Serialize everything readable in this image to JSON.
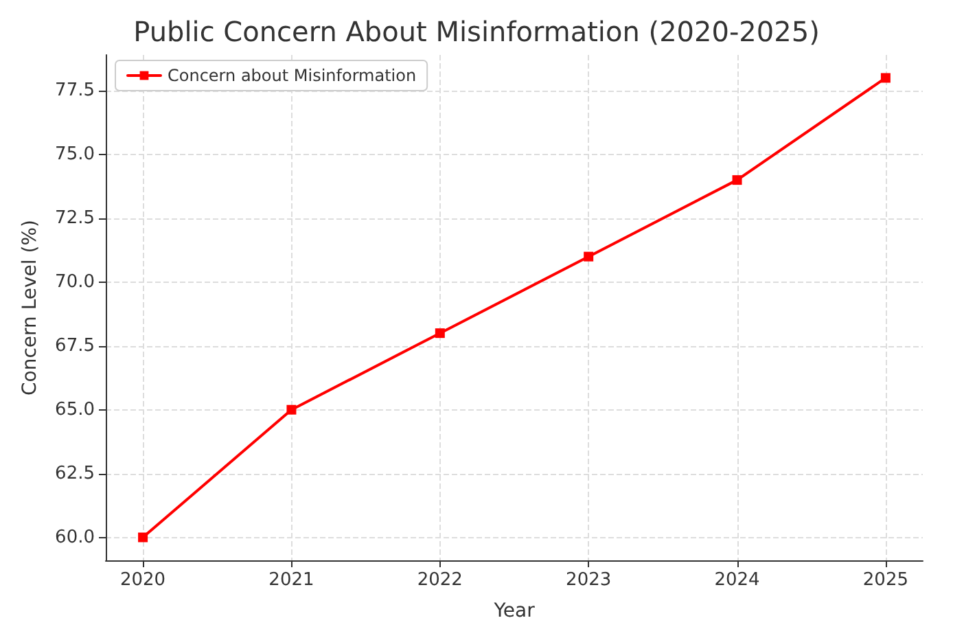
{
  "chart_data": {
    "type": "line",
    "title": "Public Concern About Misinformation (2020-2025)",
    "xlabel": "Year",
    "ylabel": "Concern Level (%)",
    "x": [
      2020,
      2021,
      2022,
      2023,
      2024,
      2025
    ],
    "series": [
      {
        "name": "Concern about Misinformation",
        "color": "#ff0000",
        "values": [
          60,
          65,
          68,
          71,
          74,
          78
        ]
      }
    ],
    "xlim": [
      2019.75,
      2025.25
    ],
    "xticks": [
      2020,
      2021,
      2022,
      2023,
      2024,
      2025
    ],
    "ylim": [
      59.1,
      78.9
    ],
    "yticks": [
      {
        "value": 60,
        "label": "60.0"
      },
      {
        "value": 62.5,
        "label": "62.5"
      },
      {
        "value": 65,
        "label": "65.0"
      },
      {
        "value": 67.5,
        "label": "67.5"
      },
      {
        "value": 70,
        "label": "70.0"
      },
      {
        "value": 72.5,
        "label": "72.5"
      },
      {
        "value": 75,
        "label": "75.0"
      },
      {
        "value": 77.5,
        "label": "77.5"
      }
    ],
    "grid": true,
    "legend": "top left",
    "marker": "square",
    "line_style": "solid"
  }
}
